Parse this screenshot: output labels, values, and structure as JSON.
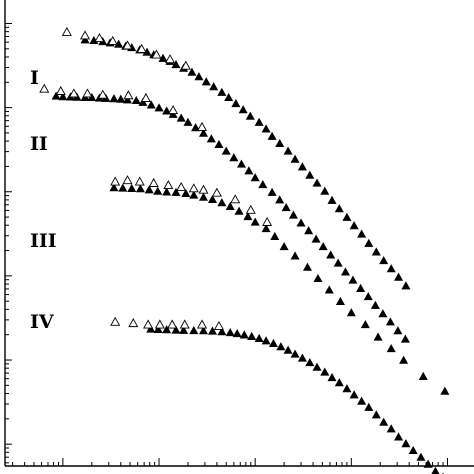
{
  "chart_data": {
    "type": "scatter",
    "title": "",
    "xlabel": "",
    "ylabel": "",
    "x_scale": "log",
    "y_scale": "log",
    "xlim": [
      0.00025,
      18
    ],
    "ylim": [
      5.5e-05,
      18
    ],
    "grid": false,
    "marker_styles": {
      "open": "open-triangle",
      "filled": "filled-triangle"
    },
    "series": [
      {
        "label": "I",
        "open": [
          [
            0.0011,
            7.8
          ],
          [
            0.0017,
            7.1
          ],
          [
            0.0024,
            6.6
          ],
          [
            0.0033,
            6.1
          ],
          [
            0.0047,
            5.4
          ],
          [
            0.0066,
            4.9
          ],
          [
            0.0094,
            4.2
          ],
          [
            0.013,
            3.7
          ],
          [
            0.019,
            3.1
          ]
        ],
        "filled": [
          [
            0.0017,
            6.3
          ],
          [
            0.0021,
            6.2
          ],
          [
            0.0026,
            6.0
          ],
          [
            0.0031,
            5.8
          ],
          [
            0.0038,
            5.6
          ],
          [
            0.0045,
            5.3
          ],
          [
            0.0052,
            5.1
          ],
          [
            0.0063,
            4.8
          ],
          [
            0.0075,
            4.5
          ],
          [
            0.0088,
            4.2
          ],
          [
            0.011,
            3.8
          ],
          [
            0.013,
            3.5
          ],
          [
            0.015,
            3.2
          ],
          [
            0.018,
            2.9
          ],
          [
            0.022,
            2.6
          ],
          [
            0.026,
            2.3
          ],
          [
            0.031,
            2.0
          ],
          [
            0.037,
            1.75
          ],
          [
            0.045,
            1.5
          ],
          [
            0.053,
            1.3
          ],
          [
            0.063,
            1.1
          ],
          [
            0.075,
            0.93
          ],
          [
            0.089,
            0.78
          ],
          [
            0.11,
            0.66
          ],
          [
            0.13,
            0.55
          ],
          [
            0.15,
            0.45
          ],
          [
            0.18,
            0.37
          ],
          [
            0.22,
            0.3
          ],
          [
            0.26,
            0.24
          ],
          [
            0.31,
            0.195
          ],
          [
            0.37,
            0.155
          ],
          [
            0.44,
            0.125
          ],
          [
            0.53,
            0.1
          ],
          [
            0.63,
            0.078
          ],
          [
            0.75,
            0.062
          ],
          [
            0.9,
            0.049
          ],
          [
            1.07,
            0.039
          ],
          [
            1.28,
            0.031
          ],
          [
            1.52,
            0.024
          ],
          [
            1.82,
            0.019
          ],
          [
            2.17,
            0.015
          ],
          [
            2.6,
            0.012
          ],
          [
            3.1,
            0.0095
          ],
          [
            3.7,
            0.0075
          ]
        ]
      },
      {
        "label": "II",
        "open": [
          [
            0.00064,
            1.65
          ],
          [
            0.00095,
            1.55
          ],
          [
            0.0013,
            1.45
          ],
          [
            0.0018,
            1.45
          ],
          [
            0.0026,
            1.4
          ],
          [
            0.0048,
            1.38
          ],
          [
            0.0073,
            1.28
          ],
          [
            0.014,
            0.92
          ],
          [
            0.028,
            0.58
          ]
        ],
        "filled": [
          [
            0.00085,
            1.35
          ],
          [
            0.001,
            1.33
          ],
          [
            0.0012,
            1.32
          ],
          [
            0.0014,
            1.31
          ],
          [
            0.0017,
            1.3
          ],
          [
            0.002,
            1.3
          ],
          [
            0.0024,
            1.28
          ],
          [
            0.0028,
            1.27
          ],
          [
            0.0034,
            1.26
          ],
          [
            0.004,
            1.24
          ],
          [
            0.0047,
            1.22
          ],
          [
            0.0058,
            1.2
          ],
          [
            0.0068,
            1.14
          ],
          [
            0.0083,
            1.06
          ],
          [
            0.01,
            0.98
          ],
          [
            0.012,
            0.9
          ],
          [
            0.014,
            0.82
          ],
          [
            0.017,
            0.74
          ],
          [
            0.02,
            0.66
          ],
          [
            0.024,
            0.57
          ],
          [
            0.029,
            0.49
          ],
          [
            0.035,
            0.42
          ],
          [
            0.042,
            0.36
          ],
          [
            0.05,
            0.3
          ],
          [
            0.06,
            0.25
          ],
          [
            0.072,
            0.21
          ],
          [
            0.086,
            0.175
          ],
          [
            0.1,
            0.145
          ],
          [
            0.12,
            0.12
          ],
          [
            0.15,
            0.097
          ],
          [
            0.18,
            0.079
          ],
          [
            0.21,
            0.064
          ],
          [
            0.25,
            0.052
          ],
          [
            0.3,
            0.042
          ],
          [
            0.36,
            0.034
          ],
          [
            0.43,
            0.027
          ],
          [
            0.51,
            0.022
          ],
          [
            0.61,
            0.0175
          ],
          [
            0.73,
            0.014
          ],
          [
            0.87,
            0.011
          ],
          [
            1.04,
            0.0088
          ],
          [
            1.25,
            0.007
          ],
          [
            1.5,
            0.0056
          ],
          [
            1.78,
            0.0044
          ],
          [
            2.13,
            0.0035
          ],
          [
            2.55,
            0.0028
          ],
          [
            3.05,
            0.0022
          ],
          [
            3.65,
            0.00175
          ]
        ]
      },
      {
        "label": "III",
        "open": [
          [
            0.0035,
            0.13
          ],
          [
            0.0047,
            0.135
          ],
          [
            0.0063,
            0.13
          ],
          [
            0.0088,
            0.125
          ],
          [
            0.0125,
            0.118
          ],
          [
            0.017,
            0.112
          ],
          [
            0.023,
            0.108
          ],
          [
            0.029,
            0.104
          ],
          [
            0.04,
            0.096
          ],
          [
            0.062,
            0.08
          ],
          [
            0.09,
            0.06
          ],
          [
            0.133,
            0.043
          ]
        ],
        "filled": [
          [
            0.0034,
            0.11
          ],
          [
            0.0042,
            0.109
          ],
          [
            0.0052,
            0.108
          ],
          [
            0.0064,
            0.107
          ],
          [
            0.0079,
            0.104
          ],
          [
            0.0097,
            0.1
          ],
          [
            0.012,
            0.098
          ],
          [
            0.015,
            0.097
          ],
          [
            0.019,
            0.094
          ],
          [
            0.023,
            0.09
          ],
          [
            0.029,
            0.085
          ],
          [
            0.036,
            0.08
          ],
          [
            0.045,
            0.073
          ],
          [
            0.055,
            0.066
          ],
          [
            0.068,
            0.058
          ],
          [
            0.084,
            0.05
          ],
          [
            0.1,
            0.043
          ],
          [
            0.13,
            0.036
          ],
          [
            0.16,
            0.029
          ],
          [
            0.2,
            0.022
          ],
          [
            0.26,
            0.017
          ],
          [
            0.35,
            0.0125
          ],
          [
            0.45,
            0.0092
          ],
          [
            0.59,
            0.0067
          ],
          [
            0.77,
            0.0049
          ],
          [
            1.0,
            0.0036
          ],
          [
            1.4,
            0.0026
          ],
          [
            1.9,
            0.00185
          ],
          [
            2.6,
            0.00135
          ],
          [
            3.5,
            0.00098
          ],
          [
            5.6,
            0.00063
          ],
          [
            9.4,
            0.00042
          ]
        ]
      },
      {
        "label": "IV",
        "open": [
          [
            0.0035,
            0.0028
          ],
          [
            0.0054,
            0.0027
          ],
          [
            0.0077,
            0.0026
          ],
          [
            0.0102,
            0.0026
          ],
          [
            0.0137,
            0.0026
          ],
          [
            0.0185,
            0.0026
          ],
          [
            0.028,
            0.0026
          ],
          [
            0.042,
            0.0025
          ]
        ],
        "filled": [
          [
            0.0082,
            0.0023
          ],
          [
            0.0098,
            0.00228
          ],
          [
            0.012,
            0.00226
          ],
          [
            0.015,
            0.00224
          ],
          [
            0.018,
            0.00222
          ],
          [
            0.023,
            0.00221
          ],
          [
            0.029,
            0.0022
          ],
          [
            0.036,
            0.00218
          ],
          [
            0.045,
            0.00214
          ],
          [
            0.055,
            0.00209
          ],
          [
            0.065,
            0.00203
          ],
          [
            0.077,
            0.00196
          ],
          [
            0.092,
            0.00188
          ],
          [
            0.11,
            0.00178
          ],
          [
            0.13,
            0.00167
          ],
          [
            0.155,
            0.00155
          ],
          [
            0.185,
            0.00142
          ],
          [
            0.22,
            0.00129
          ],
          [
            0.26,
            0.00116
          ],
          [
            0.31,
            0.00104
          ],
          [
            0.37,
            0.00092
          ],
          [
            0.44,
            0.00081
          ],
          [
            0.53,
            0.00071
          ],
          [
            0.63,
            0.00061
          ],
          [
            0.75,
            0.00053
          ],
          [
            0.9,
            0.00045
          ],
          [
            1.07,
            0.00038
          ],
          [
            1.28,
            0.00032
          ],
          [
            1.52,
            0.00027
          ],
          [
            1.82,
            0.00022
          ],
          [
            2.17,
            0.00018
          ],
          [
            2.6,
            0.00015
          ],
          [
            3.1,
            0.00012
          ],
          [
            3.7,
            0.0001
          ],
          [
            4.4,
            8.3e-05
          ],
          [
            5.3,
            6.9e-05
          ],
          [
            6.3,
            5.7e-05
          ],
          [
            7.5,
            4.7e-05
          ],
          [
            9.0,
            4e-05
          ],
          [
            10.7,
            3.3e-05
          ],
          [
            12.8,
            2.8e-05
          ]
        ]
      }
    ]
  }
}
